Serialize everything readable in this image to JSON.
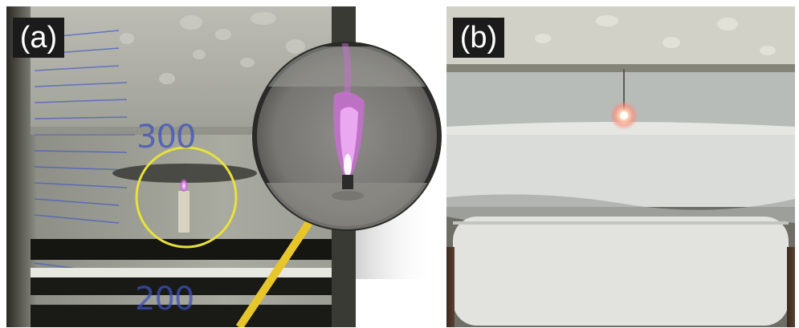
{
  "panel_a": {
    "label": "(a)",
    "scale_marks": [
      "300",
      "200"
    ]
  },
  "panel_b": {
    "label": "(b)"
  },
  "colors": {
    "plasma_purple": "#d07ad8",
    "highlight_yellow": "#e8e23a",
    "scale_blue": "#3c50be",
    "spark_orange": "#ffb38a"
  }
}
